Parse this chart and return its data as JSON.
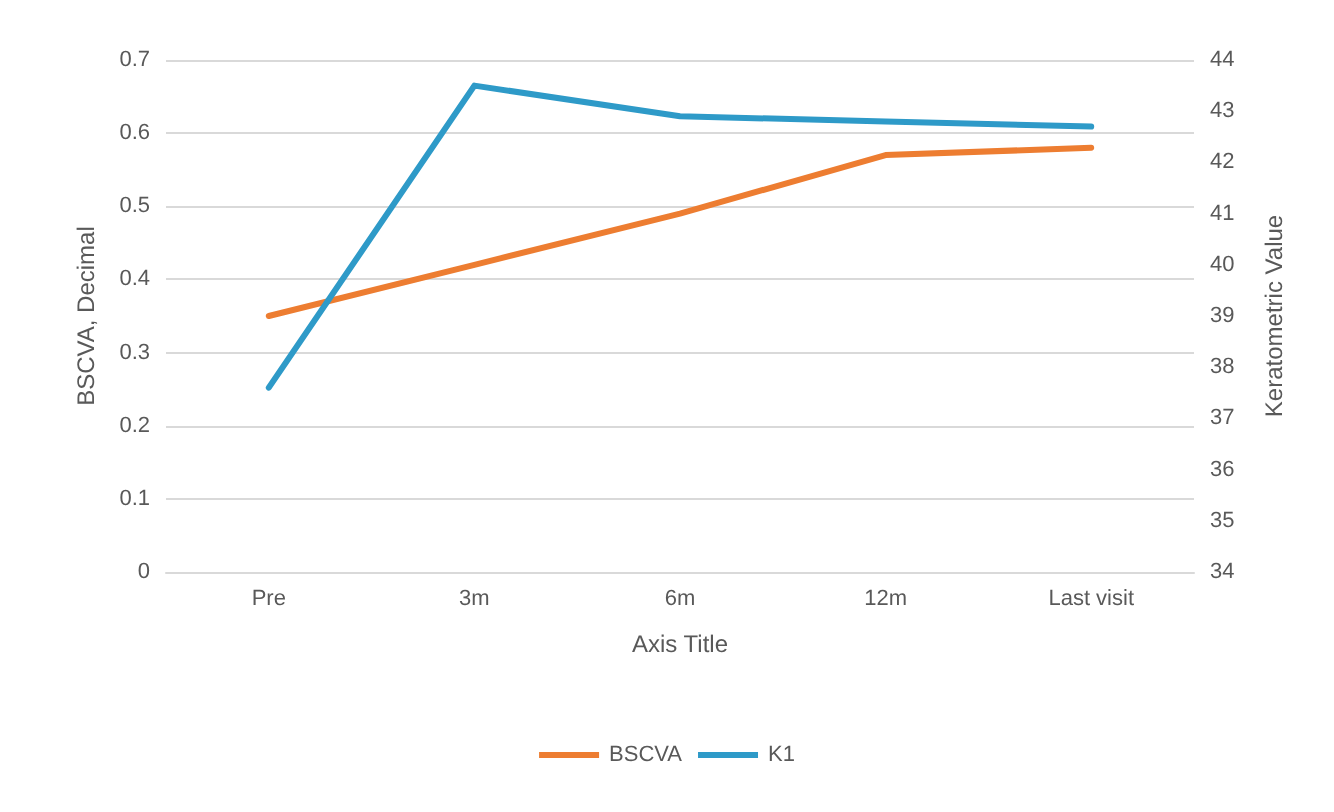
{
  "chart_data": {
    "type": "line",
    "xlabel": "Axis Title",
    "ylabel": "BSCVA, Decimal",
    "y2label": "Keratometric Value",
    "categories": [
      "Pre",
      "3m",
      "6m",
      "12m",
      "Last visit"
    ],
    "series": [
      {
        "name": "BSCVA",
        "color": "#ed7d31",
        "values": [
          0.35,
          0.42,
          0.49,
          0.57,
          0.58
        ]
      },
      {
        "name": "K1",
        "color": "#2e9ac8",
        "axis": "y2",
        "values": [
          37.6,
          43.5,
          42.9,
          42.8,
          42.7
        ]
      }
    ],
    "ylim": [
      0,
      0.7
    ],
    "yticks": [
      0,
      0.1,
      0.2,
      0.3,
      0.4,
      0.5,
      0.6,
      0.7
    ],
    "y2lim": [
      34,
      44
    ],
    "y2ticks": [
      34,
      35,
      36,
      37,
      38,
      39,
      40,
      41,
      42,
      43,
      44
    ],
    "grid": "y",
    "legend": "bottom",
    "marker": "none",
    "line_style": "solid"
  }
}
